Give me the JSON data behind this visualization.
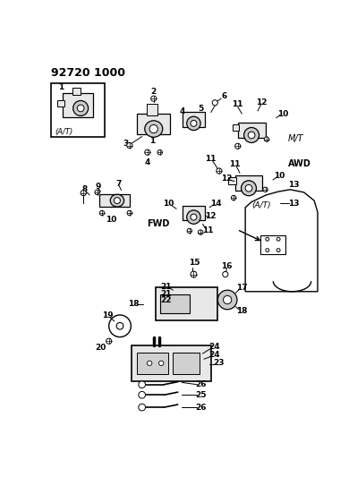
{
  "bg_color": "#ffffff",
  "fig_width": 3.99,
  "fig_height": 5.33,
  "dpi": 100,
  "top_code": "92720 1000",
  "labels": {
    "at1": "(A/T)",
    "mt": "M/T",
    "awd": "AWD",
    "fwd": "FWD",
    "at2": "(A/T)"
  }
}
